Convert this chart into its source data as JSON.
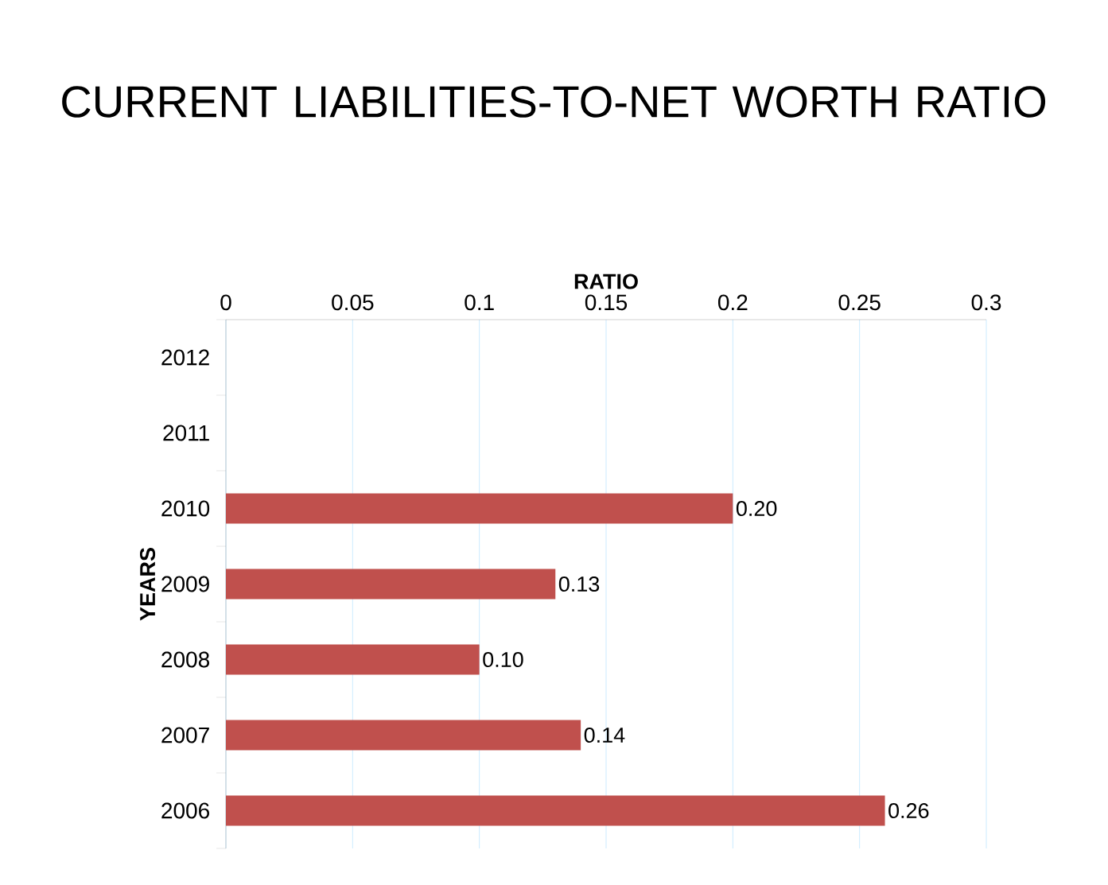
{
  "chart_data": {
    "type": "bar",
    "orientation": "horizontal",
    "title": "CURRENT LIABILITIES-TO-NET WORTH RATIO",
    "xlabel": "RATIO",
    "ylabel": "YEARS",
    "categories": [
      "2012",
      "2011",
      "2010",
      "2009",
      "2008",
      "2007",
      "2006"
    ],
    "values": [
      null,
      null,
      0.2,
      0.13,
      0.1,
      0.14,
      0.26
    ],
    "value_labels": [
      null,
      null,
      "0.20",
      "0.13",
      "0.10",
      "0.14",
      "0.26"
    ],
    "color": "#c0504d",
    "xlim": [
      0,
      0.3
    ],
    "xticks": [
      0,
      0.05,
      0.1,
      0.15,
      0.2,
      0.25,
      0.3
    ],
    "grid": "x"
  }
}
